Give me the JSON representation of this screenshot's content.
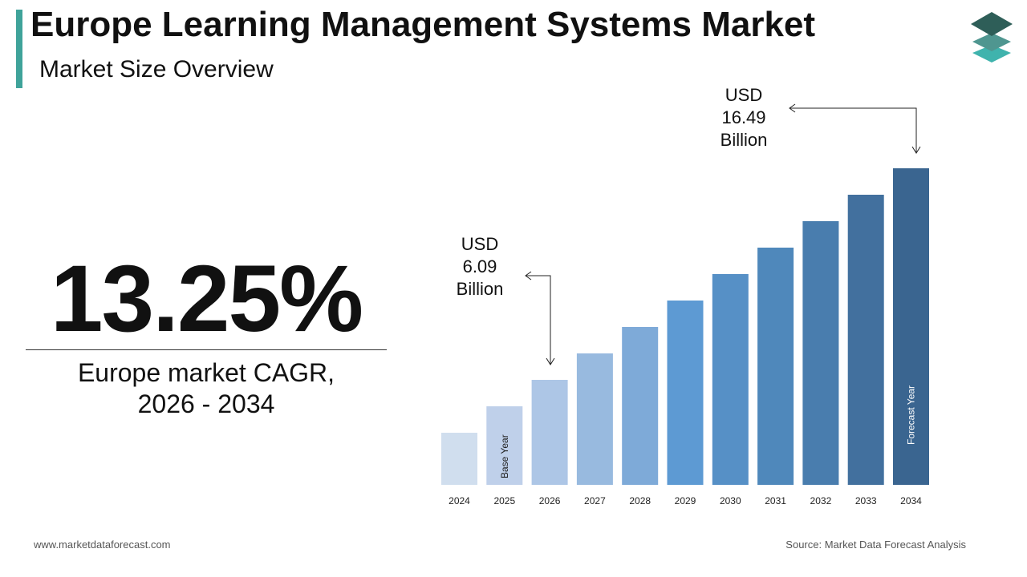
{
  "header": {
    "title": "Europe Learning Management Systems Market",
    "subtitle": "Market Size Overview"
  },
  "kpi": {
    "value": "13.25%",
    "label_line1": "Europe market CAGR,",
    "label_line2": "2026 - 2034"
  },
  "annotations": {
    "start": {
      "line1": "USD",
      "line2": "6.09",
      "line3": "Billion"
    },
    "end": {
      "line1": "USD",
      "line2": "16.49",
      "line3": "Billion"
    }
  },
  "footer": {
    "website": "www.marketdataforecast.com",
    "source": "Source: Market Data Forecast Analysis"
  },
  "colors": {
    "accent": "#3fa39a",
    "bars": [
      "#d0deee",
      "#bfd0ea",
      "#adc6e6",
      "#98badf",
      "#7eaad8",
      "#5d9ad3",
      "#5690c6",
      "#4f88bb",
      "#497dae",
      "#42709e",
      "#3a6590"
    ]
  },
  "chart_data": {
    "type": "bar",
    "categories": [
      "2024",
      "2025",
      "2026",
      "2027",
      "2028",
      "2029",
      "2030",
      "2031",
      "2032",
      "2033",
      "2034"
    ],
    "values": [
      4.75,
      5.38,
      6.09,
      6.9,
      7.81,
      8.84,
      10.02,
      11.34,
      12.85,
      14.55,
      16.49
    ],
    "unit": "USD Billion",
    "bar_labels": {
      "2025": "Base Year",
      "2034": "Forecast Year"
    },
    "grid": false,
    "legend": "none"
  }
}
